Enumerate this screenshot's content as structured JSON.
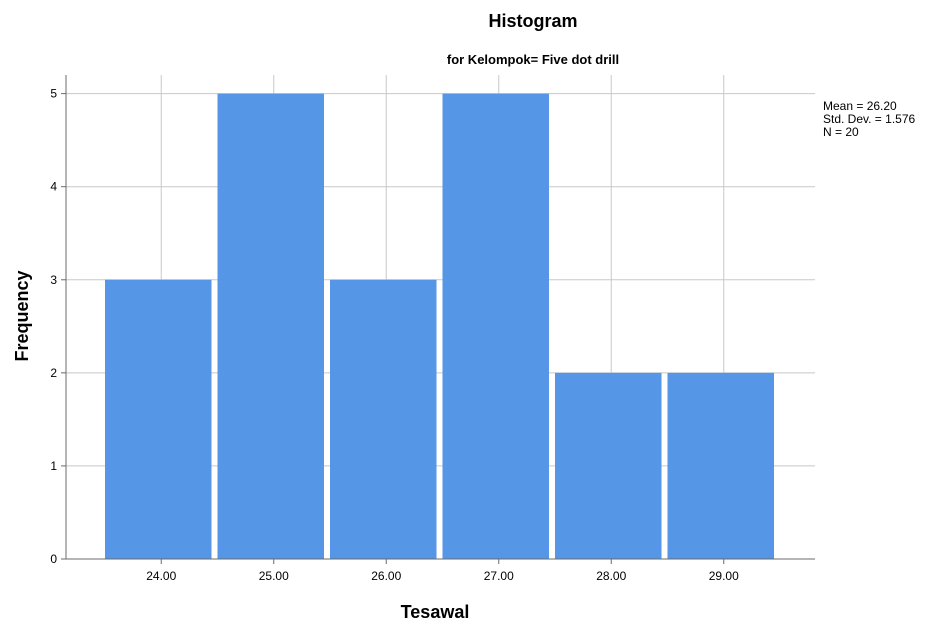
{
  "chart_data": {
    "type": "bar",
    "title": "Histogram",
    "subtitle": "for Kelompok= Five dot drill",
    "xlabel": "Tesawal",
    "ylabel": "Frequency",
    "categories": [
      "24.00",
      "25.00",
      "26.00",
      "27.00",
      "28.00",
      "29.00"
    ],
    "values": [
      3,
      5,
      3,
      5,
      2,
      2
    ],
    "ylim": [
      0,
      5.2
    ],
    "yticks": [
      "0",
      "1",
      "2",
      "3",
      "4",
      "5"
    ],
    "grid": true,
    "bar_color": "#5596e6",
    "stats": {
      "mean": "Mean = 26.20",
      "std": "Std. Dev. = 1.576",
      "n": "N = 20"
    }
  }
}
